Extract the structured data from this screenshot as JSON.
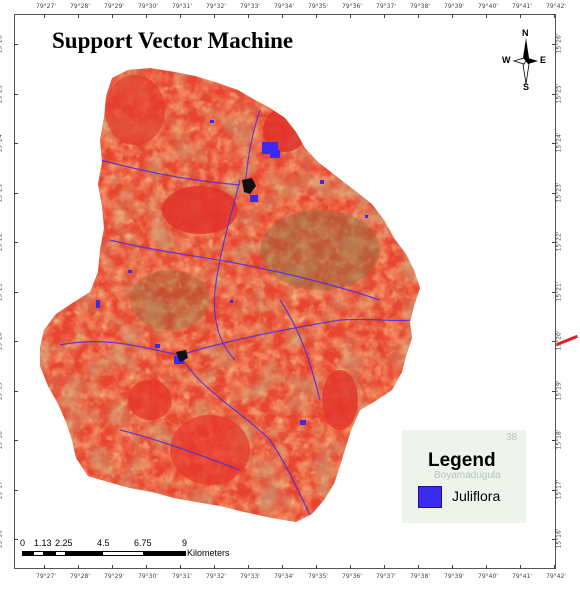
{
  "title": "Support Vector Machine",
  "top_ticks": [
    "79°27'",
    "79°28'",
    "79°29'",
    "79°30'",
    "79°31'",
    "79°32'",
    "79°33'",
    "79°34'",
    "79°35'",
    "79°36'",
    "79°37'",
    "79°38'",
    "79°39'",
    "79°40'",
    "79°41'",
    "79°42'"
  ],
  "bottom_ticks": [
    "79°27'",
    "79°28'",
    "79°29'",
    "79°30'",
    "79°31'",
    "79°32'",
    "79°33'",
    "79°34'",
    "79°35'",
    "79°36'",
    "79°37'",
    "79°38'",
    "79°39'",
    "79°40'",
    "79°41'",
    "79°42'"
  ],
  "left_ticks": [
    "15°26'",
    "15°25'",
    "15°24'",
    "15°23'",
    "15°22'",
    "15°21'",
    "15°20'",
    "15°19'",
    "15°18'",
    "15°17'",
    "15°16'"
  ],
  "right_ticks": [
    "15°26'",
    "15°25'",
    "15°24'",
    "15°23'",
    "15°22'",
    "15°21'",
    "15°20'",
    "15°19'",
    "15°18'",
    "15°17'",
    "15°16'"
  ],
  "north_arrow": {
    "n": "N",
    "s": "S",
    "e": "E",
    "w": "W"
  },
  "legend": {
    "title": "Legend",
    "item_label": "Juliflora",
    "item_color": "#3a2bf0",
    "faint_text_1": "Boyamadugula",
    "faint_text_2": "38"
  },
  "scale_bar": {
    "labels": [
      "0",
      "1.13",
      "2.25",
      "4.5",
      "6.75",
      "9"
    ],
    "unit": "Kilometers"
  },
  "colors": {
    "map_red": "#e83a2e",
    "map_orange": "#f07a3a",
    "map_yellow": "#f5c26a",
    "map_brown": "#8a6a3a",
    "juliflora_blue": "#3a2bf0",
    "accent_red_line": "#e02020"
  }
}
